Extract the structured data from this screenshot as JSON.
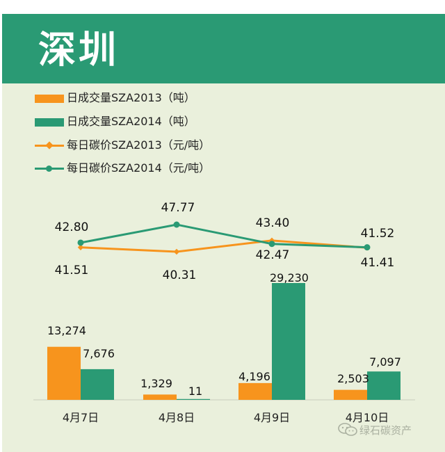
{
  "header": {
    "title": "深圳"
  },
  "legend": [
    {
      "label": "日成交量SZA2013（吨）",
      "kind": "bar",
      "color": "#f7941d"
    },
    {
      "label": "日成交量SZA2014（吨）",
      "kind": "bar",
      "color": "#2a9a74"
    },
    {
      "label": "每日碳价SZA2013（元/吨）",
      "kind": "line-diamond",
      "color": "#f7941d"
    },
    {
      "label": "每日碳价SZA2014（元/吨）",
      "kind": "line-dot",
      "color": "#2a9a74"
    }
  ],
  "watermark": {
    "text": "绿石碳资产",
    "icon": "wechat-icon"
  },
  "chart_data": {
    "type": "bar",
    "categories": [
      "4月7日",
      "4月8日",
      "4月9日",
      "4月10日"
    ],
    "bar_series": [
      {
        "name": "日成交量SZA2013（吨）",
        "color": "#f7941d",
        "values": [
          13274,
          1329,
          4196,
          2503
        ],
        "labels": [
          "13,274",
          "1,329",
          "4,196",
          "2,503"
        ]
      },
      {
        "name": "日成交量SZA2014（吨）",
        "color": "#2a9a74",
        "values": [
          7676,
          11,
          29230,
          7097
        ],
        "labels": [
          "7,676",
          "11",
          "29,230",
          "7,097"
        ]
      }
    ],
    "line_series": [
      {
        "name": "每日碳价SZA2013（元/吨）",
        "color": "#f7941d",
        "marker": "diamond",
        "values": [
          41.51,
          40.31,
          43.4,
          41.41
        ],
        "labels": [
          "41.51",
          "40.31",
          "43.40",
          "41.41"
        ]
      },
      {
        "name": "每日碳价SZA2014（元/吨）",
        "color": "#2a9a74",
        "marker": "circle",
        "values": [
          42.8,
          47.77,
          42.47,
          41.52
        ],
        "labels": [
          "42.80",
          "47.77",
          "42.47",
          "41.52"
        ]
      }
    ],
    "grid": false,
    "legend_position": "top-left"
  }
}
